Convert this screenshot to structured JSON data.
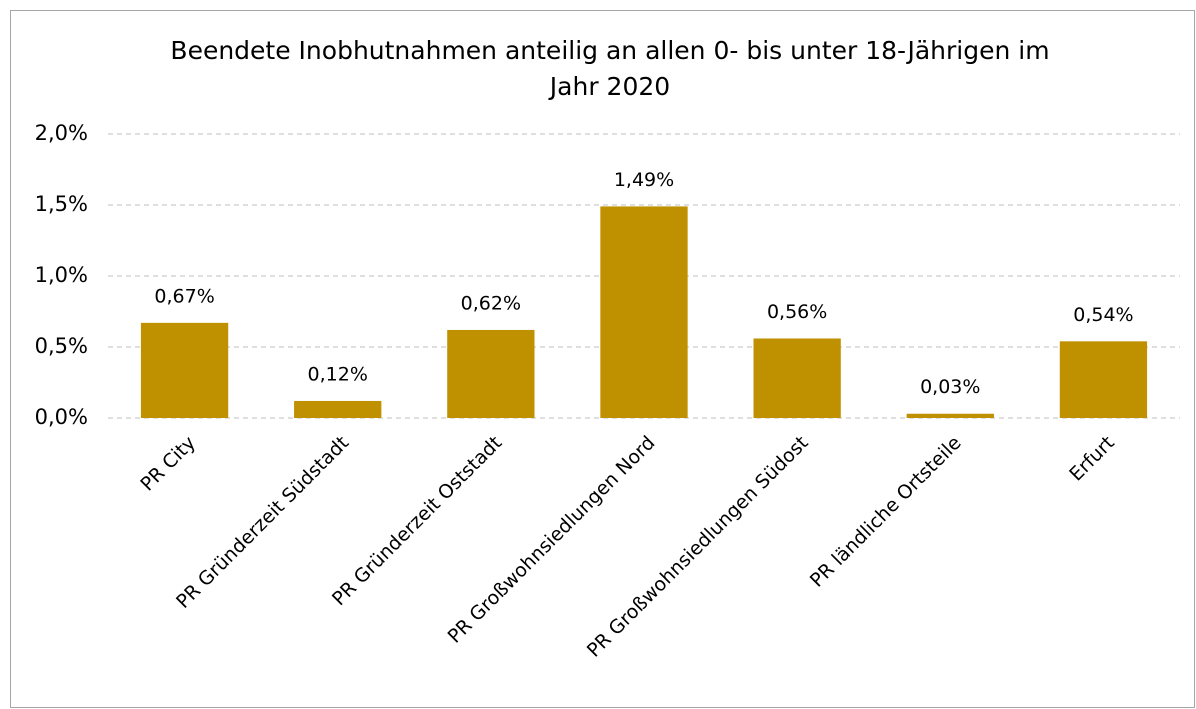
{
  "chart_data": {
    "type": "bar",
    "title_lines": [
      "Beendete Inobhutnahmen anteilig an allen 0- bis unter 18-Jährigen im",
      "Jahr 2020"
    ],
    "categories": [
      "PR City",
      "PR Gründerzeit Südstadt",
      "PR Gründerzeit Oststadt",
      "PR Großwohnsiedlungen Nord",
      "PR Großwohnsiedlungen Südost",
      "PR ländliche Ortsteile",
      "Erfurt"
    ],
    "values": [
      0.67,
      0.12,
      0.62,
      1.49,
      0.56,
      0.03,
      0.54
    ],
    "value_labels": [
      "0,67%",
      "0,12%",
      "0,62%",
      "1,49%",
      "0,56%",
      "0,03%",
      "0,54%"
    ],
    "color": "#bf9000",
    "ylim": [
      0,
      2
    ],
    "yticks": [
      {
        "value": 0,
        "label": "0,0%"
      },
      {
        "value": 0.5,
        "label": "0,5%"
      },
      {
        "value": 1,
        "label": "1,0%"
      },
      {
        "value": 1.5,
        "label": "1,5%"
      },
      {
        "value": 2,
        "label": "2,0%"
      }
    ],
    "grid": true
  }
}
